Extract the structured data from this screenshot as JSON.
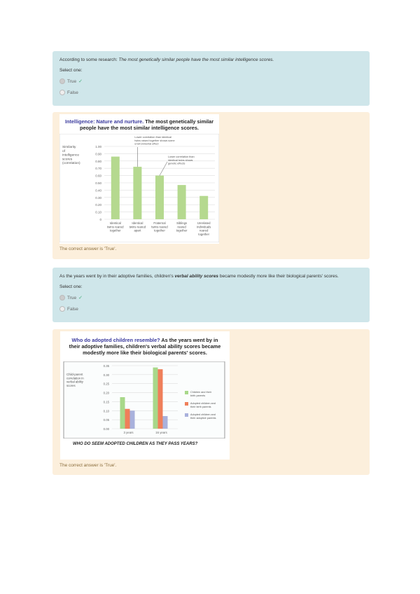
{
  "questions": [
    {
      "text_plain": "According to some research: ",
      "text_em": "The most genetically similar people have the most similar intelligence scores.",
      "text_after": "",
      "select_label": "Select one:",
      "options": [
        {
          "label": "True",
          "selected": true,
          "correct": true
        },
        {
          "label": "False",
          "selected": false
        }
      ],
      "feedback": "The correct answer is 'True'.",
      "figure": {
        "title_hl": "Intelligence: Nature and nurture.",
        "title_rest": "The most genetically similar people have the most similar intelligence scores.",
        "annotations": [
          "Lower correlation than identical twins raised together shows some environmental effect",
          "Lower correlation than identical twins shows genetic effects"
        ]
      }
    },
    {
      "text_plain": "As the years went by in their adoptive families, children's ",
      "text_em": "verbal ability scores",
      "text_after": " became modestly more like their biological parents' scores.",
      "select_label": "Select one:",
      "options": [
        {
          "label": "True",
          "selected": true,
          "correct": true
        },
        {
          "label": "False",
          "selected": false
        }
      ],
      "feedback": "The correct answer is 'True'.",
      "figure": {
        "title_hl": "Who do adopted children resemble?",
        "title_rest": "As the years went by in their adoptive families, children's verbal ability scores became modestly more like their biological parents' scores.",
        "caption": "WHO DO SEEM ADOPTED CHILDREN AS THEY PASS YEARS?"
      }
    }
  ],
  "chart_data": [
    {
      "type": "bar",
      "ylabel": "Similarity of intelligence scores (correlation)",
      "ylim": [
        0,
        1.0
      ],
      "yticks": [
        "0",
        "0.10",
        "0.20",
        "0.30",
        "0.40",
        "0.50",
        "0.60",
        "0.70",
        "0.80",
        "0.90",
        "1.00"
      ],
      "categories": [
        "Identical twins reared together",
        "Identical twins reared apart",
        "Fraternal twins reared together",
        "Siblings reared together",
        "Unrelated individuals reared together"
      ],
      "values": [
        0.86,
        0.72,
        0.6,
        0.47,
        0.32
      ],
      "color": "#b5d98f"
    },
    {
      "type": "bar",
      "ylabel": "Child-parent correlation in verbal ability scores",
      "ylim": [
        0,
        0.35
      ],
      "yticks": [
        "0.00",
        "0.05",
        "0.10",
        "0.15",
        "0.20",
        "0.25",
        "0.30",
        "0.35"
      ],
      "categories": [
        "3 years",
        "16 years"
      ],
      "legend": "right",
      "series": [
        {
          "name": "Children and their birth parents",
          "values": [
            0.175,
            0.34
          ],
          "color": "#a8d88a"
        },
        {
          "name": "Adopted children and their birth parents",
          "values": [
            0.11,
            0.33
          ],
          "color": "#ef7f5a"
        },
        {
          "name": "Adopted children and their adoptive parents",
          "values": [
            0.1,
            0.07
          ],
          "color": "#a9b1dc"
        }
      ]
    }
  ]
}
